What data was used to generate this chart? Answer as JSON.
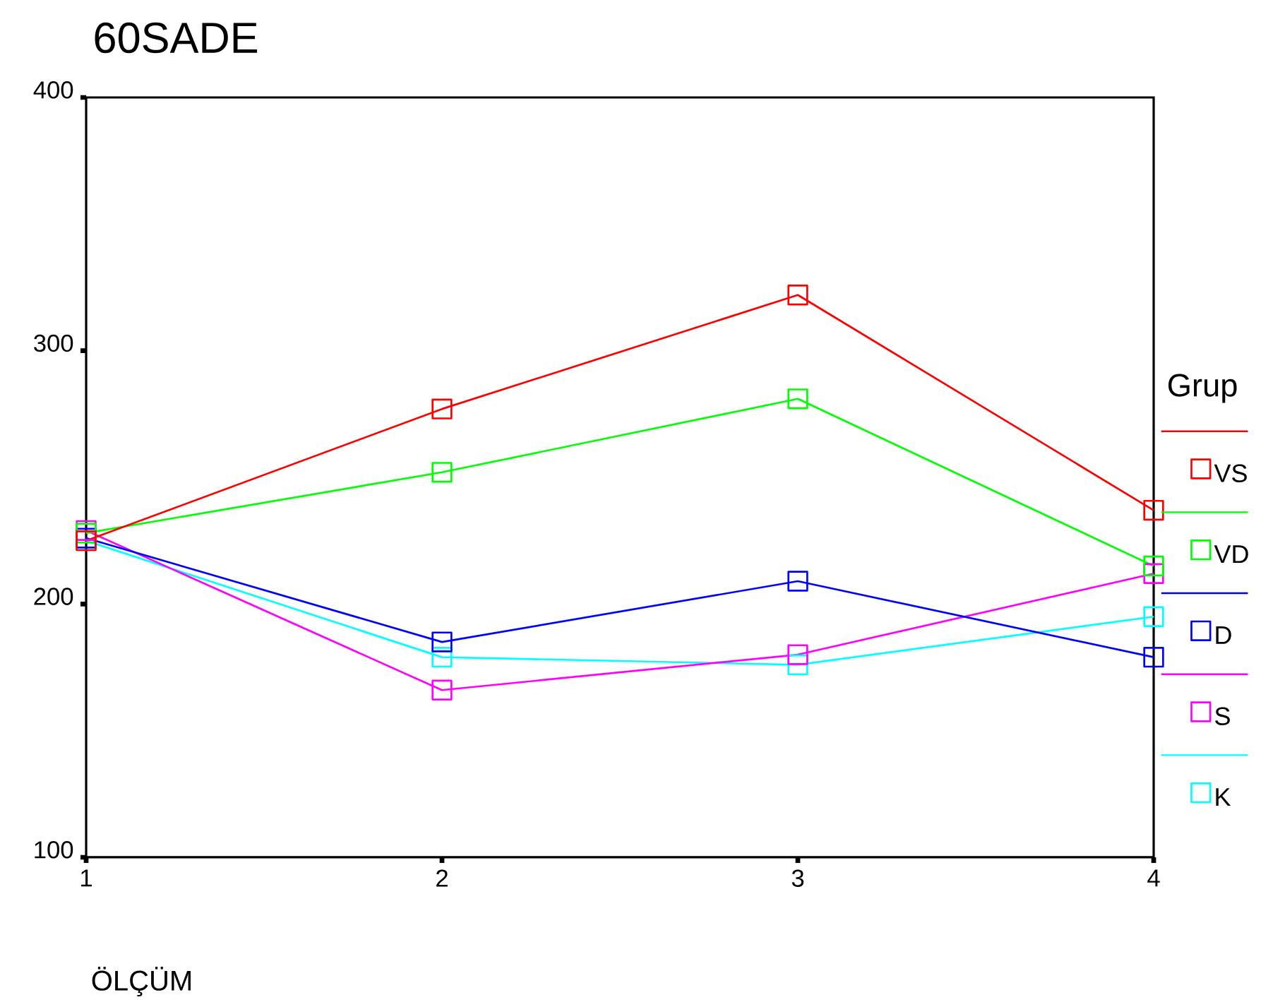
{
  "chart_data": {
    "type": "line",
    "title": "60SADE",
    "xlabel": "ÖLÇÜM",
    "legend_title": "Grup",
    "legend": "right",
    "marker": "square",
    "grid": false,
    "x": [
      1,
      2,
      3,
      4
    ],
    "xlim": [
      1,
      4
    ],
    "xticks": [
      1,
      2,
      3,
      4
    ],
    "ylim": [
      100,
      400
    ],
    "yticks": [
      100,
      200,
      300,
      400
    ],
    "series": [
      {
        "name": "VS",
        "color": "#ff0000",
        "values": [
          225,
          277,
          322,
          237
        ]
      },
      {
        "name": "VD",
        "color": "#00ff00",
        "values": [
          228,
          252,
          281,
          215
        ]
      },
      {
        "name": "D",
        "color": "#0000ff",
        "values": [
          226,
          185,
          209,
          179
        ]
      },
      {
        "name": "S",
        "color": "#ff00ff",
        "values": [
          229,
          166,
          180,
          212
        ]
      },
      {
        "name": "K",
        "color": "#00ffff",
        "values": [
          225,
          179,
          176,
          195
        ]
      }
    ]
  }
}
